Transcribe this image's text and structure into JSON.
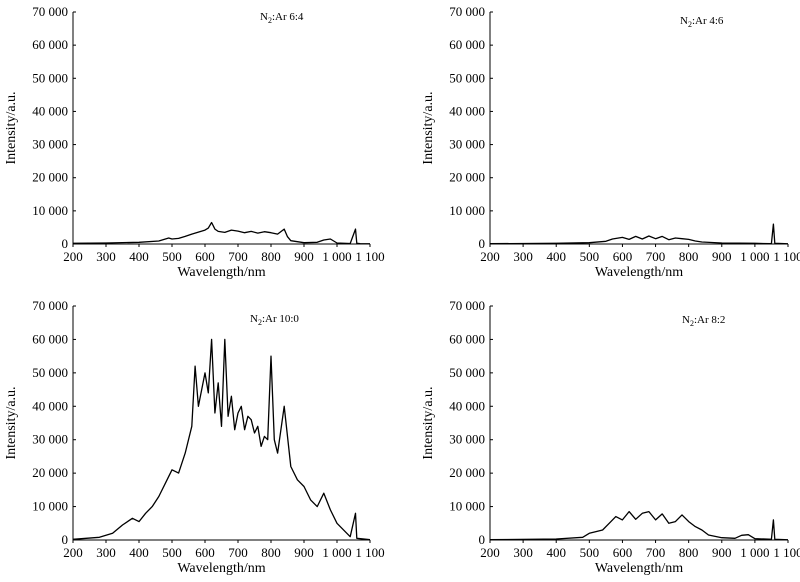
{
  "chart_data": [
    {
      "type": "line",
      "annotation": {
        "base": "N",
        "sub": "2",
        "rest": ":Ar  6:4"
      },
      "xlabel": "Wavelength/nm",
      "ylabel": "Intensity/a.u.",
      "xlim": [
        200,
        1100
      ],
      "ylim": [
        0,
        70000
      ],
      "x_ticks": [
        "200",
        "300",
        "400",
        "500",
        "600",
        "700",
        "800",
        "900",
        "1 000",
        "1 100"
      ],
      "y_ticks": [
        "0",
        "10 000",
        "20 000",
        "30 000",
        "40 000",
        "50 000",
        "60 000",
        "70 000"
      ],
      "series": [
        {
          "x": [
            200,
            300,
            400,
            460,
            490,
            500,
            520,
            540,
            560,
            580,
            600,
            610,
            620,
            630,
            640,
            660,
            680,
            700,
            720,
            740,
            760,
            780,
            800,
            820,
            840,
            850,
            860,
            900,
            940,
            960,
            980,
            1000,
            1040,
            1056,
            1060,
            1070,
            1100
          ],
          "y": [
            200,
            300,
            500,
            900,
            1800,
            1500,
            1700,
            2300,
            3000,
            3600,
            4200,
            4800,
            6500,
            4500,
            3800,
            3500,
            4200,
            3900,
            3400,
            3800,
            3300,
            3700,
            3400,
            3000,
            4500,
            2200,
            1000,
            400,
            500,
            1200,
            1500,
            300,
            150,
            4500,
            200,
            100,
            50
          ]
        }
      ]
    },
    {
      "type": "line",
      "annotation": {
        "base": "N",
        "sub": "2",
        "rest": ":Ar  4:6"
      },
      "xlabel": "Wavelength/nm",
      "ylabel": "Intensity/a.u.",
      "xlim": [
        200,
        1100
      ],
      "ylim": [
        0,
        70000
      ],
      "x_ticks": [
        "200",
        "300",
        "400",
        "500",
        "600",
        "700",
        "800",
        "900",
        "1 000",
        "1 100"
      ],
      "y_ticks": [
        "0",
        "10 000",
        "20 000",
        "30 000",
        "40 000",
        "50 000",
        "60 000",
        "70 000"
      ],
      "series": [
        {
          "x": [
            200,
            400,
            500,
            550,
            570,
            600,
            620,
            640,
            660,
            680,
            700,
            720,
            740,
            760,
            780,
            800,
            820,
            840,
            900,
            1000,
            1050,
            1056,
            1060,
            1100
          ],
          "y": [
            100,
            200,
            400,
            800,
            1500,
            2000,
            1400,
            2300,
            1500,
            2400,
            1600,
            2300,
            1300,
            1800,
            1600,
            1400,
            900,
            600,
            300,
            200,
            100,
            6000,
            200,
            50
          ]
        }
      ]
    },
    {
      "type": "line",
      "annotation": {
        "base": "N",
        "sub": "2",
        "rest": ":Ar  10:0"
      },
      "xlabel": "Wavelength/nm",
      "ylabel": "Intensity/a.u.",
      "xlim": [
        200,
        1100
      ],
      "ylim": [
        0,
        70000
      ],
      "x_ticks": [
        "200",
        "300",
        "400",
        "500",
        "600",
        "700",
        "800",
        "900",
        "1 000",
        "1 100"
      ],
      "y_ticks": [
        "0",
        "10 000",
        "20 000",
        "30 000",
        "40 000",
        "50 000",
        "60 000",
        "70 000"
      ],
      "series": [
        {
          "x": [
            200,
            280,
            320,
            350,
            380,
            400,
            420,
            440,
            460,
            480,
            500,
            520,
            540,
            560,
            570,
            580,
            600,
            610,
            620,
            630,
            640,
            650,
            660,
            670,
            680,
            690,
            700,
            710,
            720,
            730,
            740,
            750,
            760,
            770,
            780,
            790,
            800,
            810,
            820,
            840,
            860,
            880,
            900,
            920,
            940,
            960,
            980,
            1000,
            1040,
            1056,
            1060,
            1100
          ],
          "y": [
            200,
            800,
            2000,
            4500,
            6500,
            5500,
            8000,
            10000,
            13000,
            17000,
            21000,
            20000,
            26000,
            34000,
            52000,
            40000,
            50000,
            44000,
            60000,
            38000,
            47000,
            34000,
            60000,
            37000,
            43000,
            33000,
            38000,
            40000,
            33000,
            37000,
            36000,
            32000,
            34000,
            28000,
            31000,
            30000,
            55000,
            30000,
            26000,
            40000,
            22000,
            18000,
            16000,
            12000,
            10000,
            14000,
            9000,
            5000,
            1000,
            8000,
            500,
            100
          ]
        }
      ]
    },
    {
      "type": "line",
      "annotation": {
        "base": "N",
        "sub": "2",
        "rest": ":Ar  8:2"
      },
      "xlabel": "Wavelength/nm",
      "ylabel": "Intensity/a.u.",
      "xlim": [
        200,
        1100
      ],
      "ylim": [
        0,
        70000
      ],
      "x_ticks": [
        "200",
        "300",
        "400",
        "500",
        "600",
        "700",
        "800",
        "900",
        "1 000",
        "1 100"
      ],
      "y_ticks": [
        "0",
        "10 000",
        "20 000",
        "30 000",
        "40 000",
        "50 000",
        "60 000",
        "70 000"
      ],
      "series": [
        {
          "x": [
            200,
            400,
            480,
            500,
            520,
            540,
            560,
            580,
            600,
            620,
            640,
            660,
            680,
            700,
            720,
            740,
            760,
            780,
            800,
            820,
            840,
            860,
            900,
            940,
            960,
            980,
            1000,
            1050,
            1056,
            1060,
            1100
          ],
          "y": [
            100,
            300,
            800,
            2000,
            2500,
            3000,
            5000,
            7000,
            6000,
            8500,
            6200,
            8000,
            8500,
            6000,
            7800,
            5000,
            5500,
            7500,
            5500,
            4000,
            3000,
            1500,
            700,
            500,
            1400,
            1600,
            400,
            200,
            6000,
            200,
            50
          ]
        }
      ]
    }
  ]
}
